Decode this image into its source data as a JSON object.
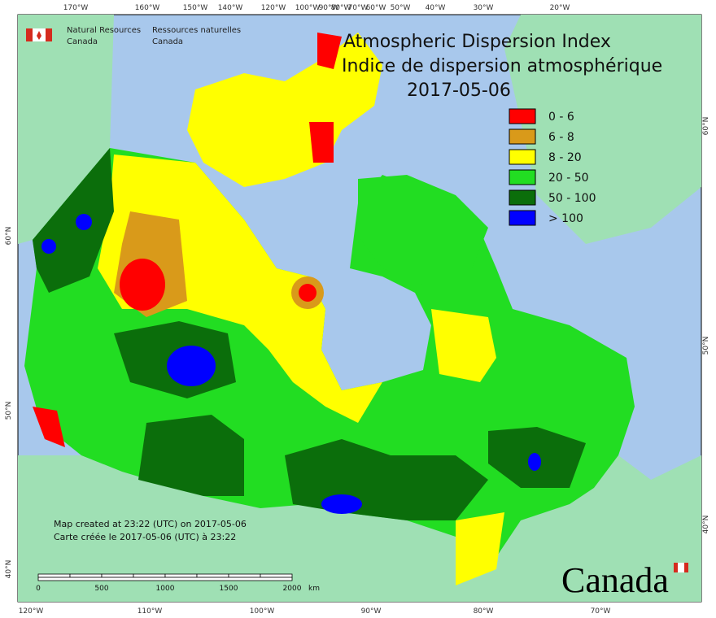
{
  "header": {
    "org_en": [
      "Natural Resources",
      "Canada"
    ],
    "org_fr": [
      "Ressources naturelles",
      "Canada"
    ]
  },
  "title": {
    "line1": "Atmospheric Dispersion Index",
    "line2": "Indice de dispersion atmosphérique",
    "date": "2017-05-06"
  },
  "legend": [
    {
      "label": "0 - 6",
      "color": "#ff0000"
    },
    {
      "label": "6 - 8",
      "color": "#d99a1a"
    },
    {
      "label": "8 - 20",
      "color": "#ffff00"
    },
    {
      "label": "20 - 50",
      "color": "#22dd22"
    },
    {
      "label": "50 - 100",
      "color": "#0b6e0b"
    },
    {
      "label": "> 100",
      "color": "#0000ff"
    }
  ],
  "graticule": {
    "top": [
      "170°W",
      "160°W",
      "150°W",
      "140°W",
      "120°W",
      "100°W",
      "90°W",
      "80°W",
      "70°W",
      "60°W",
      "50°W",
      "40°W",
      "30°W",
      "20°W"
    ],
    "bottom": [
      "120°W",
      "110°W",
      "100°W",
      "90°W",
      "80°W",
      "70°W"
    ],
    "left": [
      "60°N",
      "50°N",
      "40°N"
    ],
    "right": [
      "60°N",
      "50°N",
      "40°N"
    ]
  },
  "credits": [
    "Map created at 23:22 (UTC) on 2017-05-06",
    "Carte créée le 2017-05-06 (UTC) à 23:22"
  ],
  "scale": {
    "labels": [
      0,
      500,
      1000,
      1500,
      2000
    ],
    "unit": "km"
  },
  "wordmark": "Canada"
}
